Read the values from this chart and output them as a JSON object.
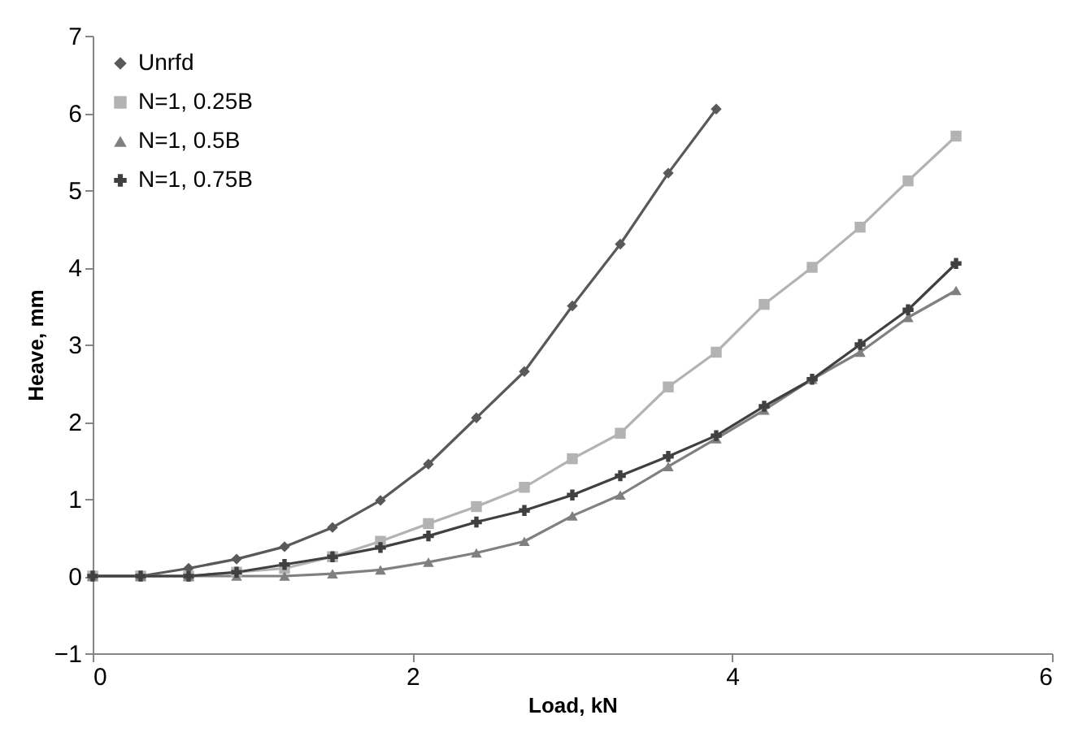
{
  "chart_data": {
    "type": "line",
    "xlabel": "Load, kN",
    "ylabel": "Heave, mm",
    "x": [
      0,
      0.3,
      0.6,
      0.9,
      1.2,
      1.5,
      1.8,
      2.1,
      2.4,
      2.7,
      3.0,
      3.3,
      3.6,
      3.9,
      4.2,
      4.5,
      4.8,
      5.1,
      5.4
    ],
    "series": [
      {
        "name": "Unrfd",
        "color": "#595959",
        "marker": "diamond",
        "x": [
          0,
          0.3,
          0.6,
          0.9,
          1.2,
          1.5,
          1.8,
          2.1,
          2.4,
          2.7,
          3.0,
          3.3,
          3.6,
          3.9
        ],
        "values": [
          0,
          0,
          0.1,
          0.22,
          0.38,
          0.63,
          0.98,
          1.45,
          2.05,
          2.65,
          3.5,
          4.3,
          5.22,
          6.05
        ]
      },
      {
        "name": "N=1, 0.25B",
        "color": "#b3b3b3",
        "marker": "square",
        "values": [
          0,
          0,
          0,
          0.05,
          0.1,
          0.25,
          0.45,
          0.68,
          0.9,
          1.15,
          1.52,
          1.85,
          2.45,
          2.9,
          3.52,
          4.0,
          4.52,
          5.12,
          5.7
        ]
      },
      {
        "name": "N=1, 0.5B",
        "color": "#808080",
        "marker": "triangle",
        "values": [
          0,
          0,
          0,
          0,
          0,
          0.03,
          0.08,
          0.18,
          0.3,
          0.45,
          0.78,
          1.05,
          1.42,
          1.78,
          2.15,
          2.55,
          2.9,
          3.35,
          3.7
        ]
      },
      {
        "name": "N=1, 0.75B",
        "color": "#404040",
        "marker": "cross",
        "values": [
          0,
          0,
          0,
          0.05,
          0.15,
          0.25,
          0.37,
          0.52,
          0.7,
          0.85,
          1.05,
          1.3,
          1.55,
          1.82,
          2.2,
          2.55,
          3.0,
          3.45,
          4.05
        ]
      }
    ],
    "xlim": [
      0,
      6
    ],
    "xticks": [
      0,
      2,
      4,
      6
    ],
    "ylim": [
      -1,
      7
    ],
    "yticks": [
      -1,
      0,
      1,
      2,
      3,
      4,
      5,
      6,
      7
    ],
    "grid": false,
    "legend": "top left",
    "line_style": "solid"
  }
}
